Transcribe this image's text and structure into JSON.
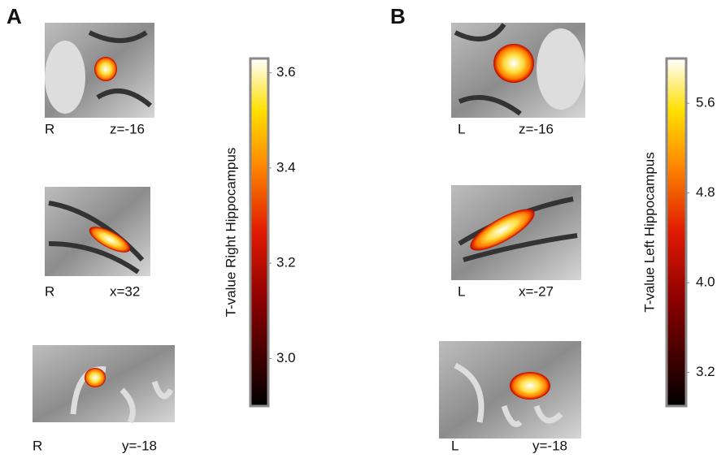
{
  "panels": [
    {
      "label": "A",
      "slices": [
        {
          "side": "R",
          "coord": "z=-16"
        },
        {
          "side": "R",
          "coord": "x=32"
        },
        {
          "side": "R",
          "coord": "y=-18"
        }
      ],
      "colorbar": {
        "title": "T-value Right Hippocampus",
        "lim": [
          2.9,
          3.63
        ],
        "ticks": [
          3.6,
          3.4,
          3.2,
          {
            "value": 3,
            "label": "3.0"
          }
        ]
      }
    },
    {
      "label": "B",
      "slices": [
        {
          "side": "L",
          "coord": "z=-16"
        },
        {
          "side": "L",
          "coord": "x=-27"
        },
        {
          "side": "L",
          "coord": "y=-18"
        }
      ],
      "colorbar": {
        "title": "T-value Left Hippocampus",
        "lim": [
          2.9,
          6.0
        ],
        "ticks": [
          5.6,
          4.8,
          {
            "value": 4,
            "label": "4.0"
          },
          3.2
        ]
      }
    }
  ]
}
